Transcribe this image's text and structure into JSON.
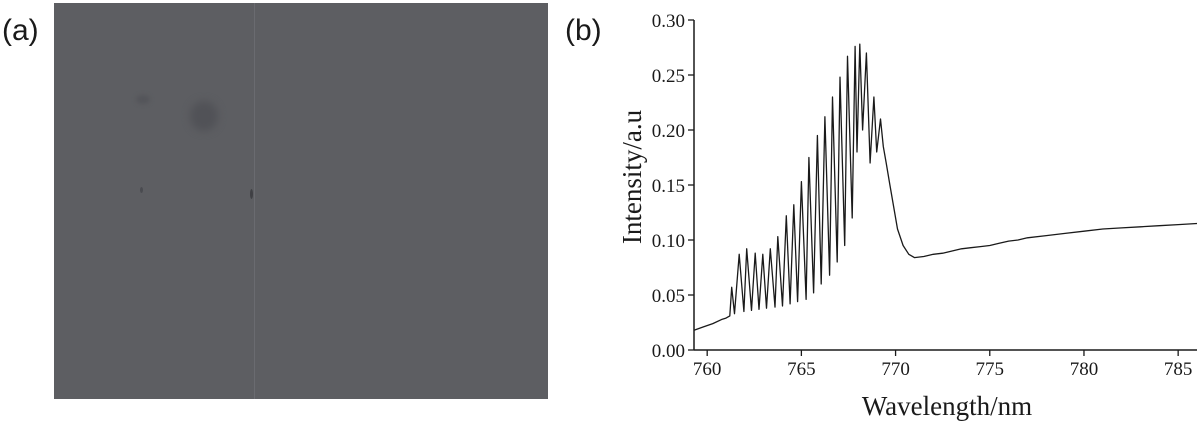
{
  "panels": {
    "a_label": "(a)",
    "b_label": "(b)"
  },
  "photo": {
    "base_color": "#5d5e62"
  },
  "chart_data": {
    "type": "line",
    "title": "",
    "xlabel": "Wavelength/nm",
    "ylabel": "Intensity/a.u",
    "xlim": [
      759.3,
      786
    ],
    "ylim": [
      0,
      0.3
    ],
    "xticks": [
      760,
      765,
      770,
      775,
      780,
      785
    ],
    "yticks": [
      0.0,
      0.05,
      0.1,
      0.15,
      0.2,
      0.25,
      0.3
    ],
    "ytick_labels": [
      "0.00",
      "0.05",
      "0.10",
      "0.15",
      "0.20",
      "0.25",
      "0.30"
    ],
    "line_color": "#1a1a1a",
    "grid": false,
    "series": [
      {
        "x": [
          759.3,
          759.8,
          760.3,
          760.8,
          761.0,
          761.2,
          761.3,
          761.45,
          761.7,
          761.95,
          762.1,
          762.35,
          762.55,
          762.75,
          762.95,
          763.15,
          763.35,
          763.6,
          763.75,
          764.0,
          764.2,
          764.4,
          764.6,
          764.8,
          765.0,
          765.25,
          765.4,
          765.65,
          765.85,
          766.05,
          766.25,
          766.5,
          766.65,
          766.9,
          767.05,
          767.3,
          767.45,
          767.7,
          767.85,
          767.95,
          768.1,
          768.25,
          768.45,
          768.65,
          768.85,
          769.0,
          769.2,
          769.35,
          769.5,
          769.7,
          769.9,
          770.1,
          770.4,
          770.7,
          771.0,
          771.5,
          772.0,
          772.5,
          773.0,
          773.5,
          774.0,
          774.5,
          775.0,
          775.5,
          776.0,
          776.5,
          777.0,
          778.0,
          779.0,
          780.0,
          781.0,
          782.0,
          783.0,
          784.0,
          785.0,
          786.0
        ],
        "y": [
          0.018,
          0.021,
          0.024,
          0.028,
          0.029,
          0.031,
          0.057,
          0.033,
          0.087,
          0.035,
          0.092,
          0.036,
          0.088,
          0.037,
          0.087,
          0.038,
          0.092,
          0.039,
          0.103,
          0.04,
          0.122,
          0.042,
          0.132,
          0.044,
          0.153,
          0.046,
          0.175,
          0.052,
          0.195,
          0.06,
          0.212,
          0.068,
          0.23,
          0.08,
          0.248,
          0.095,
          0.267,
          0.12,
          0.276,
          0.18,
          0.278,
          0.2,
          0.27,
          0.17,
          0.23,
          0.18,
          0.21,
          0.185,
          0.17,
          0.15,
          0.13,
          0.11,
          0.095,
          0.087,
          0.084,
          0.085,
          0.087,
          0.088,
          0.09,
          0.092,
          0.093,
          0.094,
          0.095,
          0.097,
          0.099,
          0.1,
          0.102,
          0.104,
          0.106,
          0.108,
          0.11,
          0.111,
          0.112,
          0.113,
          0.114,
          0.115
        ]
      }
    ]
  }
}
